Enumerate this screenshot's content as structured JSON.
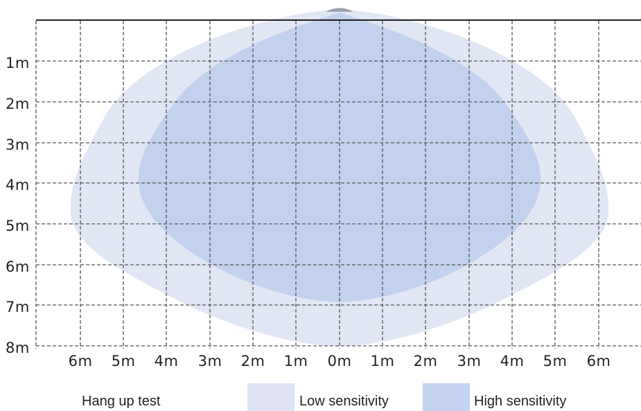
{
  "diagram": {
    "y_labels": [
      "1m",
      "2m",
      "3m",
      "4m",
      "5m",
      "6m",
      "7m",
      "8m"
    ],
    "x_labels": [
      "6m",
      "5m",
      "4m",
      "3m",
      "2m",
      "1m",
      "0m",
      "1m",
      "2m",
      "3m",
      "4m",
      "5m",
      "6m"
    ],
    "zones": [
      {
        "name": "Low sensitivity",
        "color": "#e1e6f5"
      },
      {
        "name": "High sensitivity",
        "color": "#c2d1ee"
      }
    ],
    "grid_line_color": "#555555",
    "mount_line_color": "#222222"
  },
  "legend": {
    "title": "Hang up test",
    "items": [
      {
        "label": "Low sensitivity",
        "color": "#dfe3f4"
      },
      {
        "label": "High sensitivity",
        "color": "#c2d2ef"
      }
    ]
  }
}
